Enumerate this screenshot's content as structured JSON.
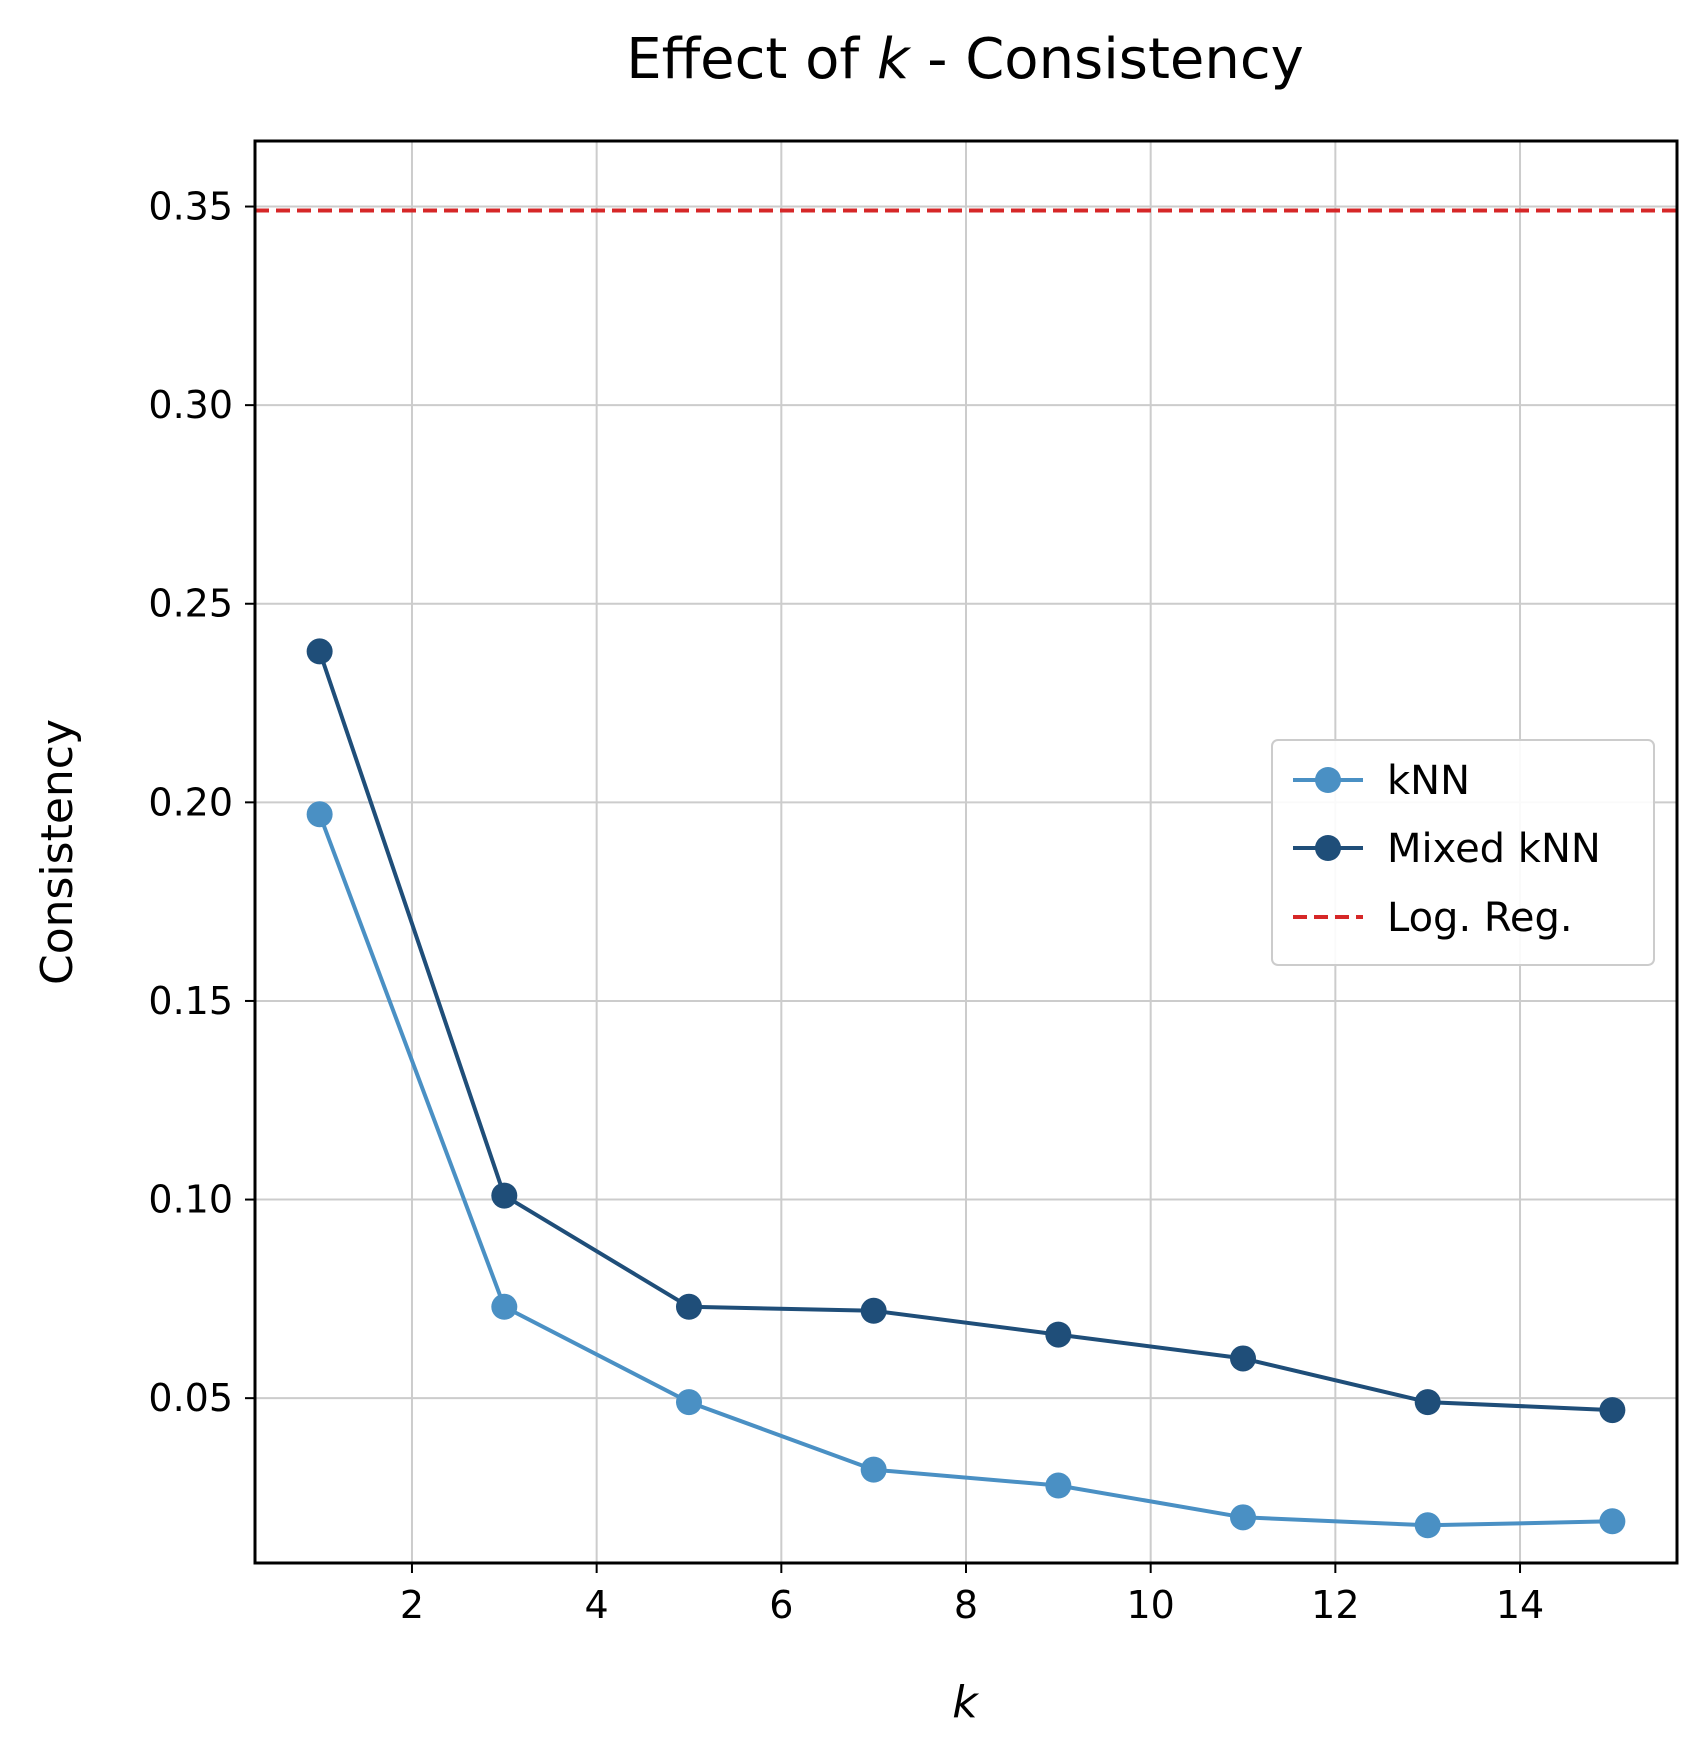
{
  "chart_data": {
    "type": "line",
    "title": {
      "prefix": "Effect of ",
      "var": "k",
      "suffix": " - Consistency"
    },
    "xlabel": "k",
    "ylabel": "Consistency",
    "xlim": [
      0.3,
      15.7
    ],
    "ylim": [
      0.0085,
      0.3665
    ],
    "xticks": [
      2,
      4,
      6,
      8,
      10,
      12,
      14
    ],
    "yticks": [
      0.05,
      0.1,
      0.15,
      0.2,
      0.25,
      0.3,
      0.35
    ],
    "ytick_labels": [
      "0.05",
      "0.10",
      "0.15",
      "0.20",
      "0.25",
      "0.30",
      "0.35"
    ],
    "grid": true,
    "legend_position": "center-right",
    "x": [
      1,
      3,
      5,
      7,
      9,
      11,
      13,
      15
    ],
    "series": [
      {
        "name": "kNN",
        "values": [
          0.197,
          0.073,
          0.049,
          0.032,
          0.028,
          0.02,
          0.018,
          0.019
        ],
        "color": "#4a90c4",
        "style": "solid-marker"
      },
      {
        "name": "Mixed kNN",
        "values": [
          0.238,
          0.101,
          0.073,
          0.072,
          0.066,
          0.06,
          0.049,
          0.047
        ],
        "color": "#1f4e79",
        "style": "solid-marker"
      }
    ],
    "reference_lines": [
      {
        "name": "Log. Reg.",
        "value": 0.349,
        "color": "#d62728",
        "style": "dashed"
      }
    ],
    "legend": [
      "kNN",
      "Mixed kNN",
      "Log. Reg."
    ]
  }
}
